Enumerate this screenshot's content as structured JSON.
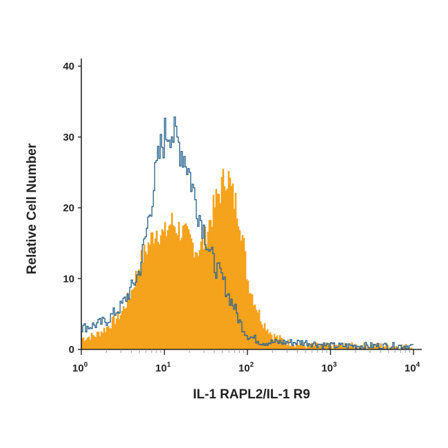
{
  "chart_data": {
    "type": "area",
    "xlabel": "IL-1 RAPL2/IL-1 R9",
    "ylabel": "Relative Cell Number",
    "x_scale": "log",
    "xlim": [
      1,
      10000
    ],
    "ylim": [
      0,
      40
    ],
    "grid": false,
    "legend": "none",
    "x_ticks": [
      {
        "value": 1,
        "base": "10",
        "exp": "0"
      },
      {
        "value": 10,
        "base": "10",
        "exp": "1"
      },
      {
        "value": 100,
        "base": "10",
        "exp": "2"
      },
      {
        "value": 1000,
        "base": "10",
        "exp": "3"
      },
      {
        "value": 10000,
        "base": "10",
        "exp": "4"
      }
    ],
    "y_ticks": [
      {
        "value": 0,
        "label": "0"
      },
      {
        "value": 10,
        "label": "10"
      },
      {
        "value": 20,
        "label": "20"
      },
      {
        "value": 30,
        "label": "30"
      },
      {
        "value": 40,
        "label": "40"
      }
    ],
    "series": [
      {
        "style": "filled",
        "color": "#F5A21C",
        "x": [
          1,
          1.5,
          2,
          3,
          4,
          5,
          6,
          8,
          10,
          12,
          15,
          20,
          25,
          30,
          35,
          40,
          45,
          50,
          55,
          60,
          65,
          70,
          80,
          90,
          100,
          120,
          150,
          200,
          300,
          500,
          1000,
          2000,
          5000,
          10000
        ],
        "y": [
          1.5,
          2,
          3,
          5,
          8,
          12,
          14,
          17,
          16,
          18,
          17,
          15.5,
          14,
          15,
          18,
          20,
          22,
          23,
          25,
          24,
          22,
          21,
          19,
          15,
          10,
          7,
          4,
          2,
          1,
          0.5,
          0.5,
          0.5,
          0.5,
          0.3
        ]
      },
      {
        "style": "outline",
        "color": "#2E6790",
        "x": [
          1,
          1.5,
          2,
          3,
          4,
          5,
          6,
          7,
          8,
          9,
          10,
          11,
          12,
          13,
          15,
          18,
          20,
          25,
          30,
          35,
          40,
          50,
          60,
          70,
          80,
          100,
          150,
          200,
          500,
          1000,
          2000,
          5000,
          10000
        ],
        "y": [
          3,
          3.5,
          4,
          6,
          8.5,
          11,
          16,
          21,
          25,
          28,
          30,
          31,
          31.5,
          30,
          29,
          27,
          25,
          20,
          17,
          14,
          12,
          10,
          7.5,
          6,
          4,
          2,
          1,
          1,
          1,
          0.5,
          0.5,
          0.5,
          0.5
        ]
      }
    ]
  }
}
